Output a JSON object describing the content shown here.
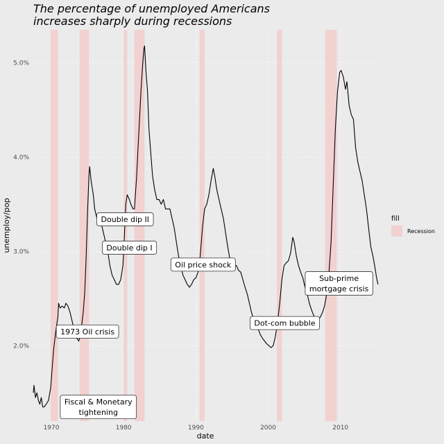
{
  "chart_data": {
    "type": "line",
    "title_lines": [
      "The percentage of unemployed Americans",
      "increases sharply during recessions"
    ],
    "xlabel": "date",
    "ylabel": "unemploy/pop",
    "xlim": [
      1967.5,
      2015.5
    ],
    "ylim": [
      1.2,
      5.35
    ],
    "x_ticks": [
      {
        "value": 1970,
        "label": "1970"
      },
      {
        "value": 1980,
        "label": "1980"
      },
      {
        "value": 1990,
        "label": "1990"
      },
      {
        "value": 2000,
        "label": "2000"
      },
      {
        "value": 2010,
        "label": "2010"
      }
    ],
    "y_ticks": [
      {
        "value": 2.0,
        "label": "2.0%"
      },
      {
        "value": 3.0,
        "label": "3.0%"
      },
      {
        "value": 4.0,
        "label": "4.0%"
      },
      {
        "value": 5.0,
        "label": "5.0%"
      }
    ],
    "grid": true,
    "legend": {
      "title": "fill",
      "entries": [
        {
          "label": "Recession",
          "color": "#f2d1d1"
        }
      ],
      "position": "right"
    },
    "recessions": [
      {
        "start": 1969.9,
        "end": 1970.9
      },
      {
        "start": 1973.9,
        "end": 1975.2
      },
      {
        "start": 1980.0,
        "end": 1980.5
      },
      {
        "start": 1981.5,
        "end": 1982.9
      },
      {
        "start": 1990.5,
        "end": 1991.2
      },
      {
        "start": 2001.2,
        "end": 2001.9
      },
      {
        "start": 2007.9,
        "end": 2009.5
      }
    ],
    "series": [
      {
        "color": "#000000",
        "points": [
          [
            1967.5,
            1.5
          ],
          [
            1967.6,
            1.58
          ],
          [
            1967.8,
            1.45
          ],
          [
            1968.0,
            1.5
          ],
          [
            1968.2,
            1.42
          ],
          [
            1968.4,
            1.38
          ],
          [
            1968.6,
            1.45
          ],
          [
            1968.8,
            1.35
          ],
          [
            1969.0,
            1.35
          ],
          [
            1969.3,
            1.38
          ],
          [
            1969.6,
            1.42
          ],
          [
            1969.9,
            1.55
          ],
          [
            1970.1,
            1.75
          ],
          [
            1970.3,
            1.95
          ],
          [
            1970.6,
            2.15
          ],
          [
            1970.9,
            2.3
          ],
          [
            1971.0,
            2.45
          ],
          [
            1971.2,
            2.4
          ],
          [
            1971.5,
            2.42
          ],
          [
            1971.8,
            2.4
          ],
          [
            1972.0,
            2.45
          ],
          [
            1972.3,
            2.42
          ],
          [
            1972.6,
            2.35
          ],
          [
            1972.9,
            2.25
          ],
          [
            1973.2,
            2.15
          ],
          [
            1973.5,
            2.08
          ],
          [
            1973.8,
            2.05
          ],
          [
            1974.0,
            2.1
          ],
          [
            1974.2,
            2.22
          ],
          [
            1974.4,
            2.35
          ],
          [
            1974.6,
            2.55
          ],
          [
            1974.8,
            2.9
          ],
          [
            1975.0,
            3.4
          ],
          [
            1975.2,
            3.8
          ],
          [
            1975.3,
            3.9
          ],
          [
            1975.5,
            3.75
          ],
          [
            1975.8,
            3.6
          ],
          [
            1976.0,
            3.45
          ],
          [
            1976.3,
            3.35
          ],
          [
            1976.6,
            3.4
          ],
          [
            1976.9,
            3.3
          ],
          [
            1977.2,
            3.2
          ],
          [
            1977.5,
            3.1
          ],
          [
            1977.8,
            3.0
          ],
          [
            1978.1,
            2.85
          ],
          [
            1978.4,
            2.75
          ],
          [
            1978.7,
            2.7
          ],
          [
            1979.0,
            2.65
          ],
          [
            1979.3,
            2.65
          ],
          [
            1979.6,
            2.7
          ],
          [
            1979.9,
            2.85
          ],
          [
            1980.1,
            3.15
          ],
          [
            1980.3,
            3.5
          ],
          [
            1980.5,
            3.6
          ],
          [
            1980.8,
            3.55
          ],
          [
            1981.0,
            3.5
          ],
          [
            1981.3,
            3.45
          ],
          [
            1981.5,
            3.45
          ],
          [
            1981.8,
            3.8
          ],
          [
            1982.0,
            4.1
          ],
          [
            1982.2,
            4.4
          ],
          [
            1982.4,
            4.7
          ],
          [
            1982.6,
            4.95
          ],
          [
            1982.8,
            5.15
          ],
          [
            1982.9,
            5.18
          ],
          [
            1983.1,
            4.9
          ],
          [
            1983.3,
            4.7
          ],
          [
            1983.5,
            4.3
          ],
          [
            1983.8,
            4.0
          ],
          [
            1984.0,
            3.8
          ],
          [
            1984.3,
            3.65
          ],
          [
            1984.6,
            3.55
          ],
          [
            1984.9,
            3.55
          ],
          [
            1985.2,
            3.5
          ],
          [
            1985.5,
            3.55
          ],
          [
            1985.8,
            3.45
          ],
          [
            1986.1,
            3.45
          ],
          [
            1986.4,
            3.45
          ],
          [
            1986.7,
            3.35
          ],
          [
            1987.0,
            3.25
          ],
          [
            1987.3,
            3.1
          ],
          [
            1987.6,
            2.95
          ],
          [
            1987.9,
            2.85
          ],
          [
            1988.2,
            2.75
          ],
          [
            1988.5,
            2.7
          ],
          [
            1988.8,
            2.65
          ],
          [
            1989.1,
            2.62
          ],
          [
            1989.4,
            2.65
          ],
          [
            1989.7,
            2.7
          ],
          [
            1990.0,
            2.72
          ],
          [
            1990.3,
            2.78
          ],
          [
            1990.6,
            2.95
          ],
          [
            1990.9,
            3.25
          ],
          [
            1991.2,
            3.45
          ],
          [
            1991.5,
            3.5
          ],
          [
            1991.8,
            3.6
          ],
          [
            1992.1,
            3.75
          ],
          [
            1992.4,
            3.88
          ],
          [
            1992.6,
            3.8
          ],
          [
            1992.9,
            3.65
          ],
          [
            1993.2,
            3.55
          ],
          [
            1993.5,
            3.45
          ],
          [
            1993.8,
            3.35
          ],
          [
            1994.1,
            3.2
          ],
          [
            1994.4,
            3.05
          ],
          [
            1994.7,
            2.92
          ],
          [
            1995.0,
            2.85
          ],
          [
            1995.3,
            2.85
          ],
          [
            1995.6,
            2.85
          ],
          [
            1995.9,
            2.8
          ],
          [
            1996.2,
            2.78
          ],
          [
            1996.5,
            2.7
          ],
          [
            1996.8,
            2.62
          ],
          [
            1997.1,
            2.55
          ],
          [
            1997.4,
            2.45
          ],
          [
            1997.7,
            2.35
          ],
          [
            1998.0,
            2.28
          ],
          [
            1998.3,
            2.22
          ],
          [
            1998.6,
            2.18
          ],
          [
            1998.9,
            2.12
          ],
          [
            1999.2,
            2.08
          ],
          [
            1999.5,
            2.05
          ],
          [
            1999.8,
            2.02
          ],
          [
            2000.1,
            2.0
          ],
          [
            2000.4,
            1.98
          ],
          [
            2000.7,
            2.0
          ],
          [
            2001.0,
            2.1
          ],
          [
            2001.3,
            2.25
          ],
          [
            2001.6,
            2.45
          ],
          [
            2001.9,
            2.7
          ],
          [
            2002.2,
            2.85
          ],
          [
            2002.5,
            2.88
          ],
          [
            2002.8,
            2.9
          ],
          [
            2003.1,
            2.98
          ],
          [
            2003.4,
            3.15
          ],
          [
            2003.6,
            3.1
          ],
          [
            2003.9,
            2.95
          ],
          [
            2004.2,
            2.85
          ],
          [
            2004.5,
            2.78
          ],
          [
            2004.8,
            2.72
          ],
          [
            2005.1,
            2.62
          ],
          [
            2005.4,
            2.55
          ],
          [
            2005.7,
            2.45
          ],
          [
            2006.0,
            2.38
          ],
          [
            2006.3,
            2.32
          ],
          [
            2006.6,
            2.28
          ],
          [
            2006.9,
            2.28
          ],
          [
            2007.2,
            2.3
          ],
          [
            2007.5,
            2.35
          ],
          [
            2007.8,
            2.42
          ],
          [
            2008.1,
            2.55
          ],
          [
            2008.4,
            2.75
          ],
          [
            2008.7,
            3.1
          ],
          [
            2009.0,
            3.7
          ],
          [
            2009.3,
            4.3
          ],
          [
            2009.6,
            4.7
          ],
          [
            2009.9,
            4.9
          ],
          [
            2010.1,
            4.92
          ],
          [
            2010.4,
            4.85
          ],
          [
            2010.7,
            4.72
          ],
          [
            2010.9,
            4.8
          ],
          [
            2011.2,
            4.55
          ],
          [
            2011.5,
            4.45
          ],
          [
            2011.8,
            4.4
          ],
          [
            2012.1,
            4.1
          ],
          [
            2012.4,
            3.95
          ],
          [
            2012.7,
            3.85
          ],
          [
            2013.0,
            3.75
          ],
          [
            2013.3,
            3.6
          ],
          [
            2013.6,
            3.45
          ],
          [
            2013.9,
            3.25
          ],
          [
            2014.2,
            3.05
          ],
          [
            2014.5,
            2.95
          ],
          [
            2014.8,
            2.82
          ],
          [
            2015.0,
            2.72
          ],
          [
            2015.2,
            2.65
          ]
        ]
      }
    ],
    "annotations": [
      {
        "x": 1976.5,
        "y": 1.35,
        "lines": [
          "Fiscal & Monetary",
          "tightening"
        ]
      },
      {
        "x": 1975.0,
        "y": 2.15,
        "lines": [
          "1973 Oil crisis"
        ]
      },
      {
        "x": 1980.2,
        "y": 3.34,
        "lines": [
          "Double dip II"
        ]
      },
      {
        "x": 1980.8,
        "y": 3.04,
        "lines": [
          "Double dip I"
        ]
      },
      {
        "x": 1991.0,
        "y": 2.86,
        "lines": [
          "Oil price shock"
        ]
      },
      {
        "x": 2002.3,
        "y": 2.24,
        "lines": [
          "Dot-com bubble"
        ]
      },
      {
        "x": 2009.8,
        "y": 2.66,
        "lines": [
          "Sub-prime",
          "mortgage crisis"
        ]
      }
    ]
  }
}
